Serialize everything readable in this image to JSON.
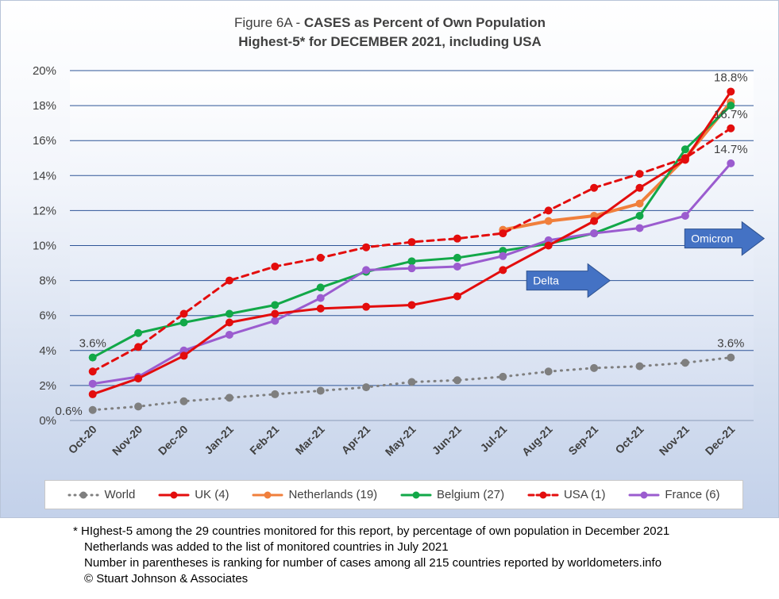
{
  "title": {
    "line1_prefix": "Figure 6A - ",
    "line1_bold": "CASES as Percent of Own Population",
    "line2": "Highest-5* for DECEMBER 2021, including USA"
  },
  "chart_data": {
    "type": "line",
    "categories": [
      "Oct-20",
      "Nov-20",
      "Dec-20",
      "Jan-21",
      "Feb-21",
      "Mar-21",
      "Apr-21",
      "May-21",
      "Jun-21",
      "Jul-21",
      "Aug-21",
      "Sep-21",
      "Oct-21",
      "Nov-21",
      "Dec-21"
    ],
    "y_ticks": [
      "0%",
      "2%",
      "4%",
      "6%",
      "8%",
      "10%",
      "12%",
      "14%",
      "16%",
      "18%",
      "20%"
    ],
    "ylim": [
      0,
      20
    ],
    "grid": true,
    "legend_position": "bottom",
    "series": [
      {
        "name": "World",
        "color": "#7f7f7f",
        "style": "dotted",
        "width": 3,
        "values": [
          0.6,
          0.8,
          1.1,
          1.3,
          1.5,
          1.7,
          1.9,
          2.2,
          2.3,
          2.5,
          2.8,
          3.0,
          3.1,
          3.3,
          3.6
        ]
      },
      {
        "name": "Netherlands (19)",
        "color": "#f07f3c",
        "style": "solid",
        "width": 4,
        "values": [
          null,
          null,
          null,
          null,
          null,
          null,
          null,
          null,
          null,
          10.9,
          11.4,
          11.7,
          12.4,
          15.0,
          18.2
        ]
      },
      {
        "name": "Belgium (27)",
        "color": "#12a848",
        "style": "solid",
        "width": 3,
        "values": [
          3.6,
          5.0,
          5.6,
          6.1,
          6.6,
          7.6,
          8.5,
          9.1,
          9.3,
          9.7,
          10.1,
          10.7,
          11.7,
          15.5,
          18.0
        ]
      },
      {
        "name": "France (6)",
        "color": "#9b5ccf",
        "style": "solid",
        "width": 3,
        "values": [
          2.1,
          2.5,
          4.0,
          4.9,
          5.7,
          7.0,
          8.6,
          8.7,
          8.8,
          9.4,
          10.3,
          10.7,
          11.0,
          11.7,
          14.7
        ]
      },
      {
        "name": "UK (4)",
        "color": "#e30d0d",
        "style": "solid",
        "width": 3,
        "values": [
          1.5,
          2.4,
          3.7,
          5.6,
          6.1,
          6.4,
          6.5,
          6.6,
          7.1,
          8.6,
          10.0,
          11.4,
          13.3,
          14.9,
          18.8
        ]
      },
      {
        "name": "USA (1)",
        "color": "#e30d0d",
        "style": "dashed",
        "width": 3,
        "values": [
          2.8,
          4.2,
          6.1,
          8.0,
          8.8,
          9.3,
          9.9,
          10.2,
          10.4,
          10.7,
          12.0,
          13.3,
          14.1,
          15.0,
          16.7
        ]
      }
    ],
    "legend": [
      {
        "name": "World",
        "color": "#7f7f7f",
        "style": "dotted"
      },
      {
        "name": "UK (4)",
        "color": "#e30d0d",
        "style": "solid"
      },
      {
        "name": "Netherlands (19)",
        "color": "#f07f3c",
        "style": "solid"
      },
      {
        "name": "Belgium (27)",
        "color": "#12a848",
        "style": "solid"
      },
      {
        "name": "USA (1)",
        "color": "#e30d0d",
        "style": "dashed"
      },
      {
        "name": "France (6)",
        "color": "#9b5ccf",
        "style": "solid"
      }
    ],
    "data_labels": [
      {
        "text": "3.6%",
        "x": "Oct-20",
        "y": 3.6,
        "placement": "above"
      },
      {
        "text": "0.6%",
        "x": "Oct-20",
        "y": 0.6,
        "placement": "left"
      },
      {
        "text": "18.8%",
        "x": "Dec-21",
        "y": 18.8,
        "placement": "above"
      },
      {
        "text": "16.7%",
        "x": "Dec-21",
        "y": 16.7,
        "placement": "above"
      },
      {
        "text": "14.7%",
        "x": "Dec-21",
        "y": 14.7,
        "placement": "above"
      },
      {
        "text": "3.6%",
        "x": "Dec-21",
        "y": 3.6,
        "placement": "above"
      }
    ],
    "annotations": [
      {
        "text": "Delta",
        "shape": "right-arrow",
        "at": "Aug-21",
        "y": 8.0,
        "color": "#4472c4"
      },
      {
        "text": "Omicron",
        "shape": "right-arrow",
        "at": "Dec-21",
        "y": 10.4,
        "color": "#4472c4"
      }
    ]
  },
  "footnotes": [
    "* HIghest-5 among the 29 countries monitored for this report, by percentage of own population in December 2021",
    "Netherlands was added to the list of monitored countries in July 2021",
    "Number in parentheses is ranking for number of cases among all 215 countries reported by worldometers.info",
    "© Stuart Johnson & Associates"
  ]
}
